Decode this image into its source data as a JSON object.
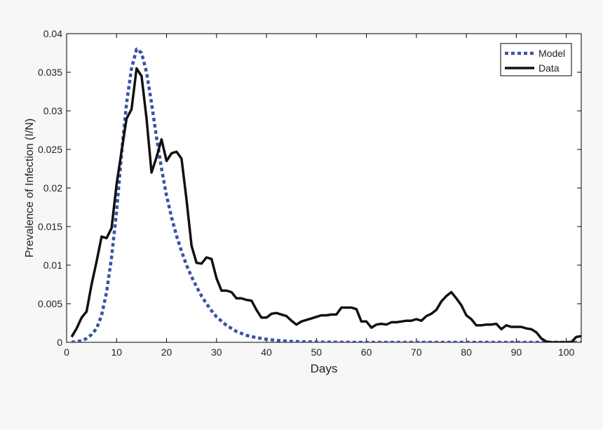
{
  "chart_data": {
    "type": "line",
    "title": "",
    "xlabel": "Days",
    "ylabel": "Prevalence of Infection (I/N)",
    "xlim": [
      0,
      103
    ],
    "ylim": [
      0,
      0.04
    ],
    "xticks": [
      0,
      10,
      20,
      30,
      40,
      50,
      60,
      70,
      80,
      90,
      100
    ],
    "xtick_labels": [
      "0",
      "10",
      "20",
      "30",
      "40",
      "50",
      "60",
      "70",
      "80",
      "90",
      "100"
    ],
    "yticks": [
      0,
      0.005,
      0.01,
      0.015,
      0.02,
      0.025,
      0.03,
      0.035,
      0.04
    ],
    "ytick_labels": [
      "0",
      "0.005",
      "0.01",
      "0.015",
      "0.02",
      "0.025",
      "0.03",
      "0.035",
      "0.04"
    ],
    "grid": false,
    "legend_position": "top-right",
    "series": [
      {
        "name": "Model",
        "style": "dotted",
        "color": "#3a53a4",
        "x": [
          1,
          2,
          3,
          4,
          5,
          6,
          7,
          8,
          9,
          10,
          11,
          12,
          13,
          14,
          15,
          16,
          17,
          18,
          19,
          20,
          21,
          22,
          23,
          24,
          25,
          26,
          27,
          28,
          29,
          30,
          32,
          34,
          36,
          38,
          40,
          42,
          45,
          50,
          55,
          60,
          70,
          80,
          90,
          100,
          103
        ],
        "y": [
          0.0,
          0.0001,
          0.0002,
          0.0005,
          0.001,
          0.0018,
          0.0035,
          0.0065,
          0.011,
          0.017,
          0.0245,
          0.031,
          0.0355,
          0.038,
          0.0375,
          0.035,
          0.031,
          0.0265,
          0.0225,
          0.019,
          0.0162,
          0.0138,
          0.0118,
          0.01,
          0.0085,
          0.0072,
          0.006,
          0.005,
          0.0041,
          0.0033,
          0.0022,
          0.0014,
          0.0009,
          0.0006,
          0.0004,
          0.00025,
          0.00012,
          4e-05,
          1e-05,
          0.0,
          0.0,
          0.0,
          0.0,
          0.0,
          0.0
        ]
      },
      {
        "name": "Data",
        "style": "solid",
        "color": "#111111",
        "x": [
          1,
          2,
          3,
          4,
          5,
          6,
          7,
          8,
          9,
          10,
          11,
          12,
          13,
          14,
          15,
          16,
          17,
          18,
          19,
          20,
          21,
          22,
          23,
          24,
          25,
          26,
          27,
          28,
          29,
          30,
          31,
          32,
          33,
          34,
          35,
          36,
          37,
          38,
          39,
          40,
          41,
          42,
          43,
          44,
          45,
          46,
          47,
          48,
          49,
          50,
          51,
          52,
          53,
          54,
          55,
          56,
          57,
          58,
          59,
          60,
          61,
          62,
          63,
          64,
          65,
          66,
          67,
          68,
          69,
          70,
          71,
          72,
          73,
          74,
          75,
          76,
          77,
          78,
          79,
          80,
          81,
          82,
          83,
          84,
          85,
          86,
          87,
          88,
          89,
          90,
          91,
          92,
          93,
          94,
          95,
          96,
          97,
          98,
          99,
          100,
          101,
          102,
          103
        ],
        "y": [
          0.0007,
          0.0018,
          0.0032,
          0.004,
          0.0075,
          0.0105,
          0.0137,
          0.0135,
          0.0148,
          0.0205,
          0.0248,
          0.029,
          0.0302,
          0.0355,
          0.0345,
          0.029,
          0.022,
          0.024,
          0.0263,
          0.0235,
          0.0245,
          0.0247,
          0.0238,
          0.0185,
          0.0125,
          0.0103,
          0.0102,
          0.011,
          0.0108,
          0.0083,
          0.0067,
          0.0067,
          0.0065,
          0.0057,
          0.0057,
          0.0055,
          0.0054,
          0.0042,
          0.0032,
          0.0032,
          0.0037,
          0.0038,
          0.0036,
          0.0034,
          0.0028,
          0.0023,
          0.0027,
          0.0029,
          0.0031,
          0.0033,
          0.0035,
          0.0035,
          0.0036,
          0.0036,
          0.0045,
          0.0045,
          0.0045,
          0.0043,
          0.0027,
          0.0027,
          0.0019,
          0.0023,
          0.0024,
          0.0023,
          0.0026,
          0.0026,
          0.0027,
          0.0028,
          0.0028,
          0.003,
          0.0028,
          0.0034,
          0.0037,
          0.0042,
          0.0053,
          0.006,
          0.0065,
          0.0057,
          0.0048,
          0.0035,
          0.003,
          0.0022,
          0.0022,
          0.0023,
          0.0023,
          0.0024,
          0.0017,
          0.0022,
          0.002,
          0.002,
          0.002,
          0.0018,
          0.0017,
          0.0013,
          0.0005,
          0.0001,
          0.0,
          0.0,
          0.0,
          0.0,
          0.0,
          0.0007,
          0.0008
        ]
      }
    ]
  }
}
